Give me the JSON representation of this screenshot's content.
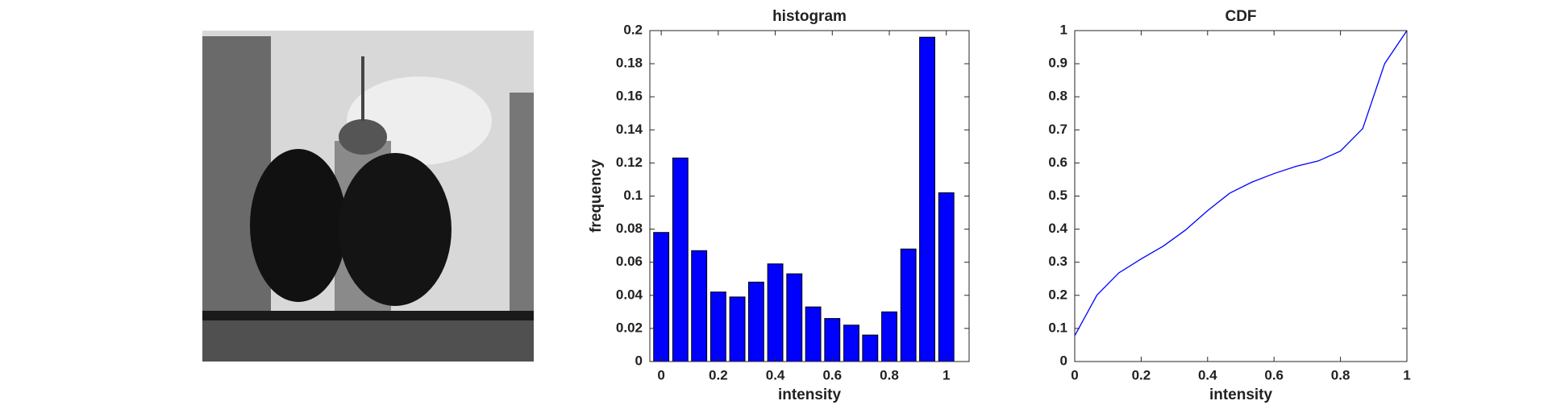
{
  "chart_data": [
    {
      "type": "bar",
      "title": "histogram",
      "xlabel": "intensity",
      "ylabel": "frequency",
      "color": "#0000ff",
      "x": [
        0,
        0.067,
        0.133,
        0.2,
        0.267,
        0.333,
        0.4,
        0.467,
        0.533,
        0.6,
        0.667,
        0.733,
        0.8,
        0.867,
        0.933,
        1
      ],
      "values": [
        0.078,
        0.123,
        0.067,
        0.042,
        0.039,
        0.048,
        0.059,
        0.053,
        0.033,
        0.026,
        0.022,
        0.016,
        0.03,
        0.068,
        0.196,
        0.102
      ],
      "xlim": [
        -0.04,
        1.08
      ],
      "xticks": [
        0,
        0.2,
        0.4,
        0.6,
        0.8,
        1
      ],
      "ylim": [
        0,
        0.2
      ],
      "yticks": [
        0,
        0.02,
        0.04,
        0.06,
        0.08,
        0.1,
        0.12,
        0.14,
        0.16,
        0.18,
        0.2
      ]
    },
    {
      "type": "line",
      "title": "CDF",
      "xlabel": "intensity",
      "color": "#0000ff",
      "x": [
        0,
        0.067,
        0.133,
        0.2,
        0.267,
        0.333,
        0.4,
        0.467,
        0.533,
        0.6,
        0.667,
        0.733,
        0.8,
        0.867,
        0.933,
        1
      ],
      "values": [
        0.078,
        0.201,
        0.268,
        0.31,
        0.349,
        0.397,
        0.456,
        0.509,
        0.542,
        0.568,
        0.59,
        0.606,
        0.636,
        0.704,
        0.9,
        1
      ],
      "xlim": [
        0,
        1
      ],
      "xticks": [
        0,
        0.2,
        0.4,
        0.6,
        0.8,
        1
      ],
      "ylim": [
        0,
        1
      ],
      "yticks": [
        0,
        0.1,
        0.2,
        0.3,
        0.4,
        0.5,
        0.6,
        0.7,
        0.8,
        0.9,
        1
      ]
    }
  ]
}
